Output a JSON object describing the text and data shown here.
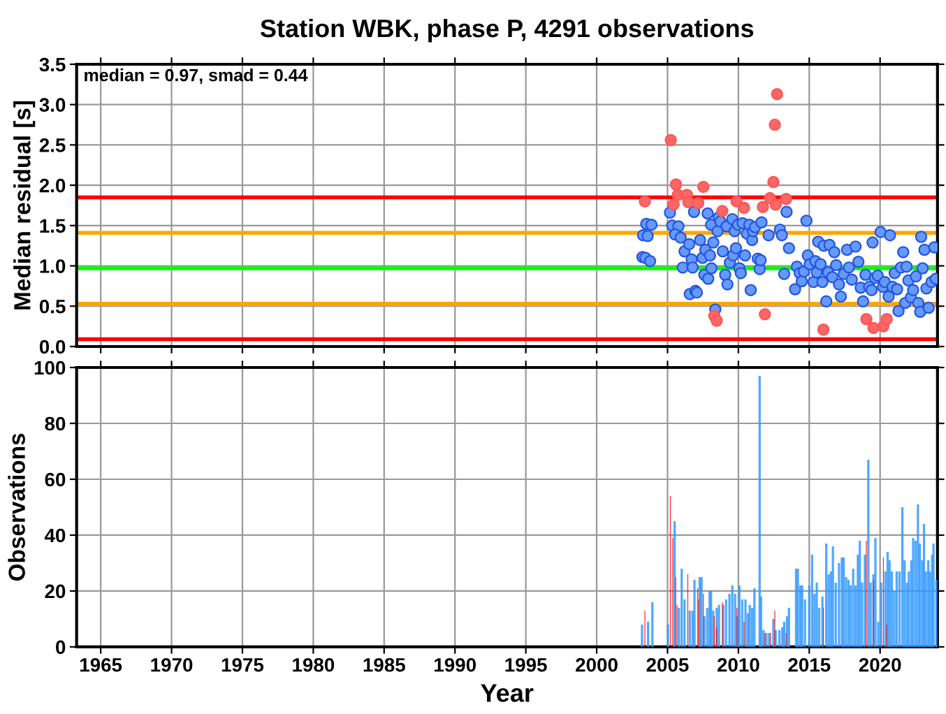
{
  "chart_data": [
    {
      "type": "scatter",
      "title": "Station WBK, phase P, 4291 observations",
      "ylabel": "Median residual [s]",
      "annotations": [
        "median = 0.97, smad = 0.44"
      ],
      "xlim": [
        1963.3,
        2024.05
      ],
      "xticks": [
        1965,
        1970,
        1975,
        1980,
        1985,
        1990,
        1995,
        2000,
        2005,
        2010,
        2015,
        2020
      ],
      "ylim": [
        0,
        3.5
      ],
      "yticks": [
        {
          "value": 0,
          "label": "0.0"
        },
        {
          "value": 0.5,
          "label": "0.5"
        },
        {
          "value": 1,
          "label": "1.0"
        },
        {
          "value": 1.5,
          "label": "1.5"
        },
        {
          "value": 2,
          "label": "2.0"
        },
        {
          "value": 2.5,
          "label": "2.5"
        },
        {
          "value": 3,
          "label": "3.0"
        },
        {
          "value": 3.5,
          "label": "3.5"
        }
      ],
      "tick_labels": "y",
      "grid": true,
      "marker": "circle",
      "ref_lines": [
        {
          "axis": "y",
          "value": 1.85,
          "color": "#ff0000"
        },
        {
          "axis": "y",
          "value": 1.41,
          "color": "#ffa500"
        },
        {
          "axis": "y",
          "value": 0.97,
          "color": "#00ff00"
        },
        {
          "axis": "y",
          "value": 0.53,
          "color": "#ffa500"
        },
        {
          "axis": "y",
          "value": 0.09,
          "color": "#ff0000"
        }
      ],
      "series": [
        {
          "color": "#6699ff",
          "x": [
            2003.27,
            2003.6,
            2003.5,
            2003.87,
            2003.23,
            2003.43,
            2003.77,
            2005.17,
            2005.33,
            2005.77,
            2005.53,
            2005.93,
            2006.07,
            2006.2,
            2006.53,
            2006.7,
            2006.77,
            2006.87,
            2006.57,
            2006.97,
            2007.07,
            2007.3,
            2007.47,
            2007.6,
            2007.67,
            2007.87,
            2007.83,
            2008.0,
            2008.07,
            2008.1,
            2008.23,
            2008.37,
            2008.53,
            2008.6,
            2008.73,
            2008.9,
            2009.07,
            2009.23,
            2009.17,
            2009.4,
            2009.57,
            2009.63,
            2009.73,
            2009.83,
            2009.97,
            2010.07,
            2010.17,
            2010.3,
            2010.47,
            2010.6,
            2010.77,
            2010.87,
            2010.97,
            2011.03,
            2011.17,
            2011.37,
            2011.5,
            2011.57,
            2011.63,
            2012.13,
            2012.93,
            2013.07,
            2013.23,
            2013.4,
            2013.57,
            2014.0,
            2014.13,
            2014.33,
            2014.47,
            2014.63,
            2014.8,
            2014.9,
            2015.03,
            2015.3,
            2015.43,
            2015.53,
            2015.63,
            2015.8,
            2015.93,
            2016.03,
            2016.2,
            2016.33,
            2016.43,
            2016.63,
            2016.77,
            2016.9,
            2017.1,
            2017.23,
            2017.43,
            2017.67,
            2017.8,
            2018.0,
            2018.27,
            2018.47,
            2018.63,
            2018.8,
            2018.97,
            2019.23,
            2019.4,
            2019.47,
            2019.63,
            2019.83,
            2020.03,
            2020.2,
            2020.33,
            2020.6,
            2020.7,
            2020.87,
            2021.03,
            2021.2,
            2021.3,
            2021.47,
            2021.63,
            2021.77,
            2021.87,
            2022.0,
            2022.17,
            2022.33,
            2022.53,
            2022.7,
            2022.83,
            2023.0,
            2023.13,
            2022.9,
            2023.27,
            2023.43,
            2023.63,
            2023.83,
            2023.93
          ],
          "values": [
            1.38,
            1.37,
            1.52,
            1.51,
            1.11,
            1.1,
            1.06,
            1.66,
            1.5,
            1.49,
            1.39,
            1.35,
            0.98,
            1.18,
            1.27,
            1.08,
            0.98,
            1.67,
            0.65,
            0.69,
            0.67,
            1.32,
            1.1,
            0.89,
            1.2,
            0.84,
            1.65,
            1.13,
            1.51,
            0.97,
            1.29,
            0.46,
            1.43,
            1.6,
            1.55,
            1.18,
            0.89,
            0.77,
            1.49,
            1.04,
            1.58,
            1.13,
            1.43,
            1.22,
            1.51,
            0.97,
            0.91,
            1.53,
            1.13,
            1.4,
            1.51,
            0.7,
            1.32,
            1.43,
            1.48,
            1.09,
            0.96,
            1.07,
            1.54,
            1.38,
            1.45,
            1.38,
            0.9,
            1.67,
            1.22,
            0.71,
            0.99,
            0.91,
            0.81,
            0.93,
            1.56,
            1.13,
            1.02,
            0.8,
            1.06,
            0.92,
            1.3,
            1.02,
            0.8,
            1.25,
            0.56,
            0.92,
            1.26,
            0.86,
            1.17,
            1.01,
            0.77,
            0.62,
            0.9,
            1.2,
            0.98,
            0.83,
            1.24,
            1.05,
            0.73,
            0.56,
            0.89,
            0.74,
            0.7,
            1.29,
            0.85,
            0.88,
            1.42,
            0.74,
            0.8,
            0.62,
            1.38,
            0.74,
            0.91,
            0.71,
            0.44,
            0.98,
            1.17,
            0.54,
            0.99,
            0.82,
            0.61,
            0.7,
            0.87,
            0.54,
            0.43,
            0.97,
            1.2,
            1.36,
            0.72,
            0.48,
            0.8,
            1.23,
            0.84
          ]
        },
        {
          "color": "#ff6666",
          "x": [
            2003.4,
            2005.23,
            2005.6,
            2005.73,
            2005.43,
            2006.37,
            2006.47,
            2007.17,
            2007.53,
            2008.87,
            2009.87,
            2010.4,
            2011.73,
            2012.47,
            2012.23,
            2012.63,
            2012.57,
            2012.73,
            2013.37,
            2008.3,
            2008.47,
            2011.87,
            2016.0,
            2019.03,
            2019.53,
            2020.23,
            2020.47
          ],
          "values": [
            1.8,
            2.56,
            2.01,
            1.88,
            1.76,
            1.88,
            1.79,
            1.78,
            1.98,
            1.68,
            1.8,
            1.72,
            1.73,
            2.04,
            1.84,
            1.76,
            2.75,
            3.13,
            1.83,
            0.38,
            0.32,
            0.4,
            0.21,
            0.34,
            0.23,
            0.25,
            0.34
          ]
        }
      ]
    },
    {
      "type": "bar",
      "xlabel": "Year",
      "ylabel": "Observations",
      "xlim": [
        1963.3,
        2024.05
      ],
      "xticks": [
        1965,
        1970,
        1975,
        1980,
        1985,
        1990,
        1995,
        2000,
        2005,
        2010,
        2015,
        2020
      ],
      "ylim": [
        0,
        100
      ],
      "yticks": [
        0,
        20,
        40,
        60,
        80,
        100
      ],
      "grid": true,
      "series": [
        {
          "color": "#3399ff",
          "x": [
            2003.2,
            2003.63,
            2003.93,
            2005.03,
            2005.5,
            2005.8,
            2006.0,
            2006.2,
            2006.57,
            2006.77,
            2006.9,
            2007.27,
            2007.4,
            2007.6,
            2007.8,
            2007.97,
            2008.07,
            2008.23,
            2008.47,
            2008.63,
            2008.93,
            2009.13,
            2009.37,
            2009.57,
            2009.77,
            2009.93,
            2010.07,
            2010.27,
            2010.5,
            2010.67,
            2010.8,
            2010.97,
            2011.13,
            2011.5,
            2011.6,
            2011.77,
            2011.97,
            2012.17,
            2012.47,
            2012.63,
            2012.9,
            2013.1,
            2013.23,
            2013.43,
            2013.57,
            2014.07,
            2014.2,
            2014.37,
            2014.5,
            2014.7,
            2015.0,
            2015.2,
            2015.37,
            2015.53,
            2015.7,
            2015.93,
            2016.2,
            2016.37,
            2016.53,
            2016.67,
            2016.87,
            2017.1,
            2017.3,
            2017.43,
            2017.6,
            2017.77,
            2017.93,
            2018.1,
            2018.27,
            2018.43,
            2018.57,
            2018.73,
            2018.93,
            2019.17,
            2019.33,
            2019.53,
            2019.67,
            2019.87,
            2020.07,
            2020.37,
            2020.53,
            2020.67,
            2020.83,
            2021.0,
            2021.17,
            2021.37,
            2021.57,
            2021.73,
            2021.9,
            2022.03,
            2022.2,
            2022.33,
            2022.5,
            2022.67,
            2022.8,
            2022.97,
            2023.1,
            2023.23,
            2023.4,
            2023.53,
            2023.67,
            2023.77,
            2023.97
          ],
          "values": [
            8,
            9,
            16,
            8,
            45,
            14,
            28,
            17,
            13,
            13,
            24,
            25,
            25,
            11,
            14,
            20,
            20,
            13,
            14,
            15,
            15,
            17,
            19,
            22,
            19,
            11,
            22,
            17,
            17,
            12,
            15,
            14,
            21,
            97,
            18,
            6,
            5,
            5,
            10,
            6,
            6,
            7,
            9,
            11,
            14,
            28,
            28,
            22,
            22,
            17,
            22,
            33,
            19,
            23,
            14,
            18,
            37,
            26,
            27,
            36,
            23,
            30,
            32,
            32,
            25,
            24,
            22,
            28,
            22,
            33,
            38,
            23,
            33,
            67,
            23,
            26,
            39,
            9,
            23,
            27,
            34,
            31,
            27,
            20,
            27,
            27,
            50,
            31,
            23,
            27,
            31,
            39,
            38,
            51,
            37,
            31,
            44,
            27,
            31,
            27,
            33,
            37,
            24
          ]
        },
        {
          "color": "#ff0000",
          "x": [
            2003.4,
            2005.2,
            2005.37,
            2005.57,
            2005.67,
            2006.43,
            2007.13,
            2007.2,
            2007.53,
            2008.3,
            2008.47,
            2008.87,
            2009.9,
            2010.4,
            2011.87,
            2012.27,
            2012.57,
            2013.37,
            2016.0,
            2019.03,
            2019.53,
            2020.23,
            2020.47
          ],
          "values": [
            13,
            54,
            39,
            25,
            15,
            26,
            21,
            17,
            19,
            11,
            7,
            16,
            14,
            9,
            5,
            5,
            13,
            5,
            14,
            38,
            24,
            32,
            8
          ]
        }
      ]
    }
  ]
}
